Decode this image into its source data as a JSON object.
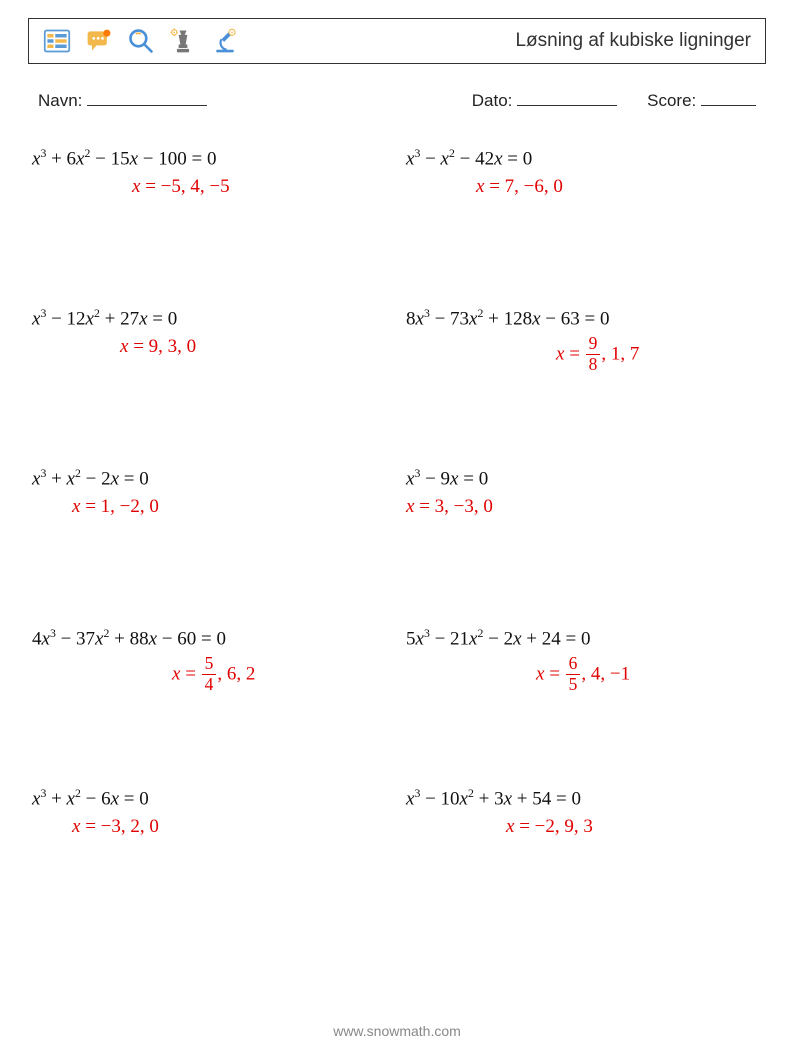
{
  "header": {
    "title": "Løsning af kubiske ligninger"
  },
  "meta": {
    "name_label": "Navn:",
    "date_label": "Dato:",
    "score_label": "Score:"
  },
  "icons": {
    "spreadsheet_colors": [
      "#f2b84b",
      "#5b9bd5"
    ],
    "chat_color": "#f2b84b",
    "magnifier_color": "#4a90d9",
    "chess_grey": "#777777",
    "microscope_blue": "#4a90d9",
    "gear_color": "#f2b84b"
  },
  "problems": [
    {
      "eq": "x<sup>3</sup> <span class='n'>+ 6</span>x<sup>2</sup> <span class='n'>− 15</span>x <span class='n'>− 100 = 0</span>",
      "ans": "x <span class='n'>= −5, 4, −5</span>",
      "ans_pad": 100
    },
    {
      "eq": "x<sup>3</sup> <span class='n'>−</span> x<sup>2</sup> <span class='n'>− 42</span>x <span class='n'>= 0</span>",
      "ans": "x <span class='n'>= 7, −6, 0</span>",
      "ans_pad": 70
    },
    {
      "eq": "x<sup>3</sup> <span class='n'>− 12</span>x<sup>2</sup> <span class='n'>+ 27</span>x <span class='n'>= 0</span>",
      "ans": "x <span class='n'>= 9, 3, 0</span>",
      "ans_pad": 88
    },
    {
      "eq": "<span class='n'>8</span>x<sup>3</sup> <span class='n'>− 73</span>x<sup>2</sup> <span class='n'>+ 128</span>x <span class='n'>− 63 = 0</span>",
      "ans": "x <span class='n'>= </span><span class='frac'><span class='t'>9</span><span class='b'>8</span></span><span class='n'>, 1, 7</span>",
      "ans_pad": 150
    },
    {
      "eq": "x<sup>3</sup> <span class='n'>+</span> x<sup>2</sup> <span class='n'>− 2</span>x <span class='n'>= 0</span>",
      "ans": "x <span class='n'>= 1, −2, 0</span>",
      "ans_pad": 40
    },
    {
      "eq": "x<sup>3</sup> <span class='n'>− 9</span>x <span class='n'>= 0</span>",
      "ans": "x <span class='n'>= 3, −3, 0</span>",
      "ans_pad": 0
    },
    {
      "eq": "<span class='n'>4</span>x<sup>3</sup> <span class='n'>− 37</span>x<sup>2</sup> <span class='n'>+ 88</span>x <span class='n'>− 60 = 0</span>",
      "ans": "x <span class='n'>= </span><span class='frac'><span class='t'>5</span><span class='b'>4</span></span><span class='n'>, 6, 2</span>",
      "ans_pad": 140
    },
    {
      "eq": "<span class='n'>5</span>x<sup>3</sup> <span class='n'>− 21</span>x<sup>2</sup> <span class='n'>− 2</span>x <span class='n'>+ 24 = 0</span>",
      "ans": "x <span class='n'>= </span><span class='frac'><span class='t'>6</span><span class='b'>5</span></span><span class='n'>, 4, −1</span>",
      "ans_pad": 130
    },
    {
      "eq": "x<sup>3</sup> <span class='n'>+</span> x<sup>2</sup> <span class='n'>− 6</span>x <span class='n'>= 0</span>",
      "ans": "x <span class='n'>= −3, 2, 0</span>",
      "ans_pad": 40
    },
    {
      "eq": "x<sup>3</sup> <span class='n'>− 10</span>x<sup>2</sup> <span class='n'>+ 3</span>x <span class='n'>+ 54 = 0</span>",
      "ans": "x <span class='n'>= −2, 9, 3</span>",
      "ans_pad": 100
    }
  ],
  "footer": "www.snowmath.com"
}
